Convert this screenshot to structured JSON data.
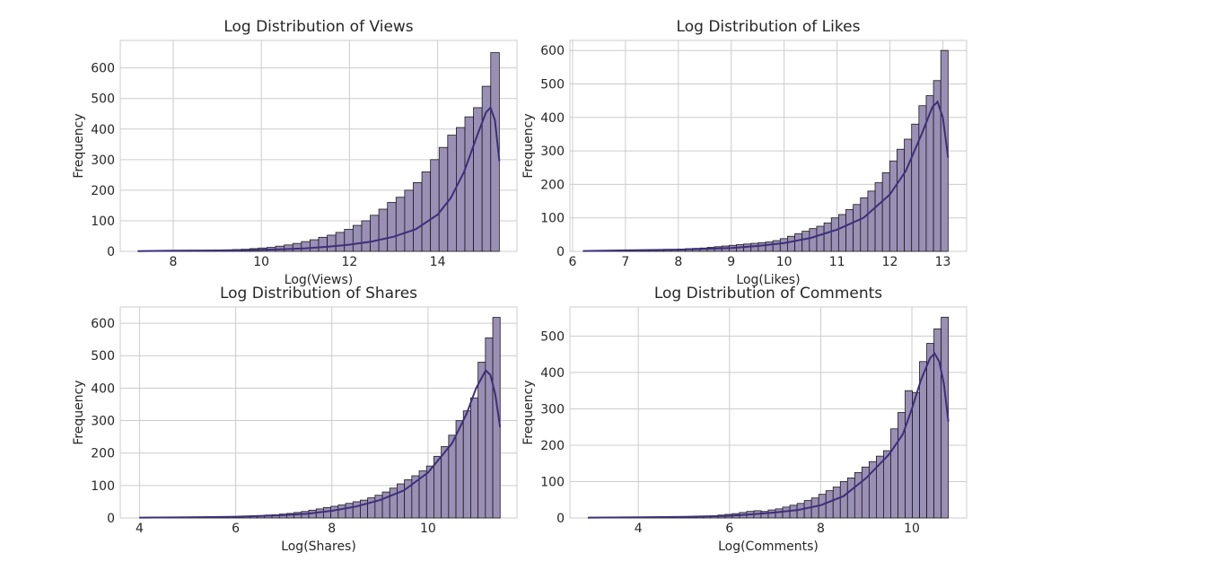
{
  "chart_data": [
    {
      "type": "bar",
      "subtype": "histogram-with-kde",
      "title": "Log Distribution of Views",
      "xlabel": "Log(Views)",
      "ylabel": "Frequency",
      "xlim": [
        6.8,
        15.8
      ],
      "ylim": [
        0,
        690
      ],
      "xticks": [
        8,
        10,
        12,
        14
      ],
      "yticks": [
        0,
        100,
        200,
        300,
        400,
        500,
        600
      ],
      "grid": true,
      "bin_start": 7.2,
      "bin_end": 15.4,
      "frequencies": [
        1,
        1,
        1,
        1,
        1,
        2,
        2,
        3,
        3,
        4,
        5,
        6,
        7,
        9,
        11,
        13,
        17,
        21,
        26,
        32,
        38,
        46,
        53,
        62,
        72,
        85,
        100,
        118,
        138,
        160,
        177,
        200,
        225,
        260,
        300,
        340,
        380,
        405,
        440,
        470,
        540,
        650
      ],
      "kde": {
        "x": [
          7.2,
          8,
          9,
          10,
          10.5,
          11,
          11.5,
          12,
          12.5,
          13,
          13.5,
          14,
          14.3,
          14.6,
          14.9,
          15.1,
          15.2,
          15.3,
          15.4
        ],
        "y": [
          1,
          2,
          3,
          5,
          7,
          10,
          15,
          22,
          32,
          48,
          72,
          120,
          175,
          260,
          380,
          455,
          470,
          430,
          295
        ]
      }
    },
    {
      "type": "bar",
      "subtype": "histogram-with-kde",
      "title": "Log Distribution of Likes",
      "xlabel": "Log(Likes)",
      "ylabel": "Frequency",
      "xlim": [
        5.95,
        13.45
      ],
      "ylim": [
        0,
        630
      ],
      "xticks": [
        6,
        7,
        8,
        9,
        10,
        11,
        12,
        13
      ],
      "yticks": [
        0,
        100,
        200,
        300,
        400,
        500,
        600
      ],
      "grid": true,
      "bin_start": 6.2,
      "bin_end": 13.1,
      "frequencies": [
        1,
        1,
        1,
        1,
        2,
        2,
        2,
        3,
        4,
        5,
        5,
        6,
        6,
        7,
        8,
        9,
        10,
        12,
        14,
        16,
        18,
        20,
        22,
        24,
        26,
        28,
        32,
        38,
        45,
        53,
        60,
        68,
        75,
        85,
        100,
        110,
        125,
        140,
        160,
        180,
        205,
        235,
        270,
        305,
        335,
        380,
        435,
        465,
        510,
        600
      ],
      "kde": {
        "x": [
          6.2,
          7,
          8,
          9,
          9.5,
          10,
          10.5,
          11,
          11.5,
          12,
          12.3,
          12.6,
          12.8,
          12.9,
          13,
          13.1
        ],
        "y": [
          1,
          3,
          5,
          10,
          16,
          25,
          40,
          65,
          100,
          170,
          240,
          350,
          430,
          447,
          400,
          280
        ]
      }
    },
    {
      "type": "bar",
      "subtype": "histogram-with-kde",
      "title": "Log Distribution of Shares",
      "xlabel": "Log(Shares)",
      "ylabel": "Frequency",
      "xlim": [
        3.6,
        11.85
      ],
      "ylim": [
        0,
        650
      ],
      "xticks": [
        4,
        6,
        8,
        10
      ],
      "yticks": [
        0,
        100,
        200,
        300,
        400,
        500,
        600
      ],
      "grid": true,
      "bin_start": 4.0,
      "bin_end": 11.5,
      "frequencies": [
        1,
        1,
        1,
        1,
        1,
        1,
        1,
        2,
        2,
        2,
        3,
        3,
        3,
        4,
        5,
        6,
        7,
        9,
        10,
        12,
        14,
        17,
        20,
        24,
        28,
        32,
        36,
        40,
        45,
        50,
        55,
        62,
        70,
        80,
        92,
        105,
        118,
        130,
        145,
        160,
        190,
        220,
        255,
        300,
        330,
        370,
        480,
        555,
        618
      ],
      "kde": {
        "x": [
          4,
          5,
          6,
          6.5,
          7,
          7.5,
          8,
          8.5,
          9,
          9.5,
          10,
          10.5,
          10.8,
          11,
          11.2,
          11.3,
          11.4,
          11.5
        ],
        "y": [
          1,
          2,
          4,
          6,
          9,
          13,
          22,
          35,
          55,
          85,
          140,
          230,
          320,
          400,
          455,
          440,
          380,
          280
        ]
      }
    },
    {
      "type": "bar",
      "subtype": "histogram-with-kde",
      "title": "Log Distribution of Comments",
      "xlabel": "Log(Comments)",
      "ylabel": "Frequency",
      "xlim": [
        2.5,
        11.2
      ],
      "ylim": [
        0,
        580
      ],
      "xticks": [
        4,
        6,
        8,
        10
      ],
      "yticks": [
        0,
        100,
        200,
        300,
        400,
        500
      ],
      "grid": true,
      "bin_start": 2.9,
      "bin_end": 10.8,
      "frequencies": [
        1,
        1,
        1,
        1,
        1,
        1,
        1,
        1,
        2,
        2,
        2,
        2,
        3,
        3,
        3,
        4,
        5,
        6,
        8,
        10,
        12,
        15,
        18,
        20,
        18,
        22,
        25,
        30,
        35,
        40,
        48,
        55,
        65,
        75,
        85,
        100,
        110,
        125,
        140,
        155,
        170,
        185,
        245,
        290,
        350,
        345,
        430,
        480,
        520,
        552
      ],
      "kde": {
        "x": [
          2.9,
          4,
          5,
          6,
          6.5,
          7,
          7.5,
          8,
          8.5,
          9,
          9.5,
          9.8,
          10,
          10.2,
          10.4,
          10.5,
          10.6,
          10.7,
          10.8
        ],
        "y": [
          1,
          2,
          3,
          6,
          10,
          15,
          22,
          35,
          60,
          110,
          175,
          230,
          300,
          380,
          440,
          452,
          430,
          370,
          265
        ]
      }
    }
  ]
}
